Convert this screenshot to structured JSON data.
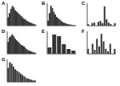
{
  "chart_data": [
    {
      "type": "bar",
      "title": "A",
      "categories": [
        null,
        null,
        null,
        null,
        null,
        null,
        null,
        null,
        null,
        null,
        null,
        null,
        null,
        null,
        null,
        null,
        null,
        null,
        null,
        null
      ],
      "values": [
        30,
        45,
        60,
        70,
        65,
        55,
        50,
        45,
        40,
        35,
        30,
        25,
        22,
        18,
        15,
        12,
        10,
        8,
        6,
        4
      ],
      "color": "#333333",
      "ylim": [
        0,
        80
      ],
      "tick_labels": false
    },
    {
      "type": "bar",
      "title": "B",
      "categories": [
        null,
        null,
        null,
        null,
        null,
        null,
        null,
        null,
        null,
        null,
        null,
        null,
        null,
        null,
        null,
        null,
        null,
        null,
        null,
        null
      ],
      "values": [
        20,
        50,
        80,
        70,
        55,
        45,
        35,
        30,
        25,
        20,
        15,
        12,
        10,
        8,
        6,
        5,
        4,
        3,
        2,
        1
      ],
      "color": "#333333",
      "ylim": [
        0,
        90
      ],
      "tick_labels": false
    },
    {
      "type": "bar",
      "title": "C",
      "categories": [
        null,
        null,
        null,
        null,
        null,
        null,
        null,
        null,
        null,
        null,
        null,
        null,
        null,
        null
      ],
      "values": [
        5,
        0,
        8,
        10,
        0,
        12,
        15,
        8,
        60,
        20,
        10,
        5,
        0,
        8
      ],
      "color": "#333333",
      "ylim": [
        0,
        70
      ],
      "tick_labels": false
    },
    {
      "type": "bar",
      "title": "D",
      "categories": [
        null,
        null,
        null,
        null,
        null,
        null,
        null,
        null,
        null,
        null,
        null,
        null,
        null,
        null,
        null,
        null,
        null,
        null,
        null,
        null
      ],
      "values": [
        40,
        55,
        60,
        65,
        58,
        50,
        45,
        40,
        35,
        30,
        28,
        25,
        20,
        15,
        12,
        10,
        8,
        6,
        5,
        3
      ],
      "color": "#333333",
      "ylim": [
        0,
        75
      ],
      "tick_labels": false
    },
    {
      "type": "bar",
      "title": "E",
      "categories": [
        null,
        null,
        null,
        null,
        null,
        null
      ],
      "values": [
        20,
        60,
        55,
        30,
        15,
        10
      ],
      "color": "#333333",
      "ylim": [
        0,
        70
      ],
      "tick_labels": false
    },
    {
      "type": "bar",
      "title": "F",
      "categories": [
        null,
        null,
        null,
        null,
        null,
        null,
        null,
        null,
        null,
        null,
        null,
        null,
        null
      ],
      "values": [
        10,
        0,
        20,
        8,
        30,
        15,
        40,
        25,
        10,
        5,
        20,
        0,
        10
      ],
      "color": "#333333",
      "ylim": [
        0,
        45
      ],
      "tick_labels": false
    },
    {
      "type": "bar",
      "title": "G",
      "categories": [
        null,
        null,
        null,
        null,
        null,
        null,
        null,
        null,
        null,
        null,
        null,
        null,
        null,
        null,
        null,
        null
      ],
      "values": [
        50,
        70,
        65,
        55,
        45,
        40,
        35,
        30,
        25,
        20,
        15,
        12,
        10,
        8,
        6,
        5
      ],
      "color": "#333333",
      "ylim": [
        0,
        80
      ],
      "tick_labels": false
    }
  ]
}
